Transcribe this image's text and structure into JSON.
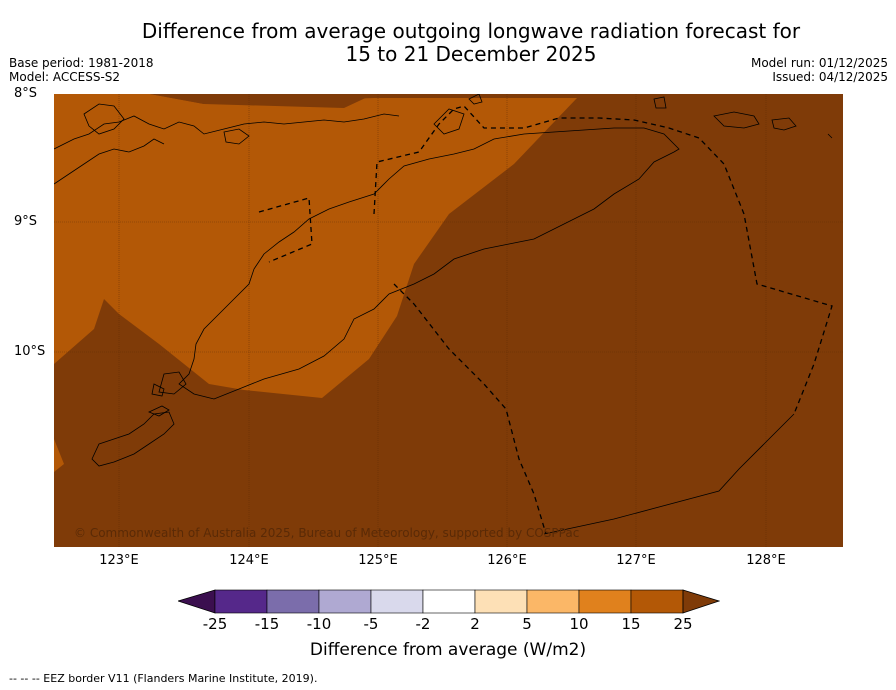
{
  "title_line1": "Difference from average outgoing longwave radiation forecast for",
  "title_line2": "15 to 21 December 2025",
  "meta": {
    "base_period": "Base period: 1981-2018",
    "model": "Model: ACCESS-S2",
    "model_run": "Model run: 01/12/2025",
    "issued": "Issued: 04/12/2025"
  },
  "axes": {
    "lat_labels": [
      "8°S",
      "9°S",
      "10°S"
    ],
    "lon_labels": [
      "123°E",
      "124°E",
      "125°E",
      "126°E",
      "127°E",
      "128°E"
    ]
  },
  "copyright": "© Commonwealth of Australia 2025, Bureau of Meteorology, supported by COSPPac",
  "colorbar": {
    "title": "Difference from average (W/m2)",
    "labels": [
      "-25",
      "-15",
      "-10",
      "-5",
      "-2",
      "2",
      "5",
      "10",
      "15",
      "25"
    ],
    "colors": [
      "#3b0f4f",
      "#55288a",
      "#7b6dab",
      "#afa9d2",
      "#d9d9ec",
      "#ffffff",
      "#fde0b6",
      "#fbb767",
      "#e0811d",
      "#b35806",
      "#7f3b08"
    ]
  },
  "field_colors": {
    "band_15_25": "#b35806",
    "above_25": "#7f3b08"
  },
  "footnote": "--  --  -- EEZ border V11 (Flanders Marine Institute, 2019)."
}
